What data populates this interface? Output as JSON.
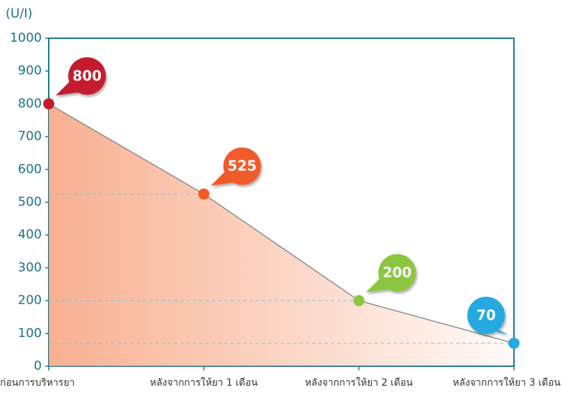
{
  "chart_data": {
    "type": "line",
    "y_label": "(U/I)",
    "categories": [
      "ก่อนการบริหารยา",
      "หลังจากการให้ยา 1 เดือน",
      "หลังจากการให้ยา 2 เดือน",
      "หลังจากการให้ยา 3 เดือน"
    ],
    "values": [
      800,
      525,
      200,
      70
    ],
    "point_colors": [
      "#c41e2e",
      "#f15a29",
      "#8cc63f",
      "#27a9e1"
    ],
    "line_color": "#8a8a8a",
    "fill_color": "#f7a27e",
    "ylim": [
      0,
      1000
    ],
    "yticks": [
      0,
      100,
      200,
      300,
      400,
      500,
      600,
      700,
      800,
      900,
      1000
    ]
  }
}
